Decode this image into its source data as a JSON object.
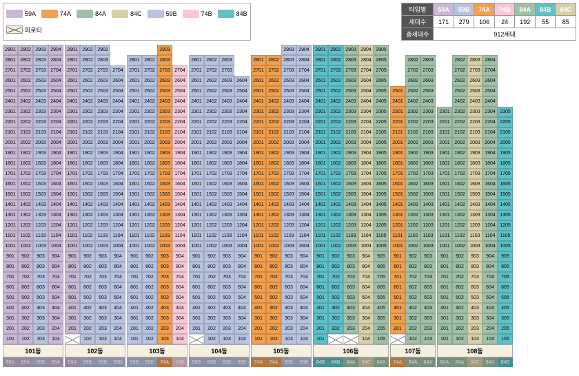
{
  "colors": {
    "59A": "#c9b8d4",
    "59B": "#b8c3e0",
    "74A": "#f0a050",
    "74B": "#f5c8d8",
    "84A": "#a0c0a8",
    "84B": "#60c0c8",
    "84C": "#d8d0a8",
    "피로티": "#ffffff"
  },
  "legend": [
    "59A",
    "74A",
    "84A",
    "84C",
    "59B",
    "74B",
    "84B",
    "피로티"
  ],
  "stats": {
    "header": "타입별",
    "row1_label": "세대수",
    "row2_label": "총세대수",
    "types": [
      "59A",
      "59B",
      "74A",
      "74B",
      "84A",
      "84B",
      "84C"
    ],
    "counts": [
      171,
      279,
      106,
      24,
      192,
      55,
      85
    ],
    "total": "912세대"
  },
  "buildings": [
    {
      "name": "101동",
      "lines": [
        "59A",
        "59A",
        "59B",
        "59A"
      ],
      "floors": 29,
      "piloti_floor": null,
      "top_offsets": [
        0,
        0,
        0,
        0
      ]
    },
    {
      "name": "102동",
      "lines": [
        "59A",
        "59B",
        "59B",
        "59B"
      ],
      "floors": 29,
      "piloti_floor": 1,
      "piloti_cols": [
        0
      ],
      "floor1_cols": [
        1,
        2,
        3
      ],
      "top_offsets": [
        0,
        0,
        0,
        2
      ]
    },
    {
      "name": "103동",
      "lines": [
        "59B",
        "59B",
        "74A",
        "74B"
      ],
      "floors": 29,
      "piloti_floor": null,
      "top_offsets": [
        1,
        1,
        0,
        2
      ]
    },
    {
      "name": "104동",
      "lines": [
        "59B",
        "59B",
        "59B",
        "59B"
      ],
      "floors": 29,
      "piloti_floor": 1,
      "piloti_cols": [
        0
      ],
      "floor1_cols": [
        1,
        2,
        3
      ],
      "top_offsets": [
        1,
        1,
        1,
        3
      ]
    },
    {
      "name": "105동",
      "lines": [
        "74A",
        "74A",
        "59B",
        "59B"
      ],
      "floors": 29,
      "piloti_floor": null,
      "top_offsets": [
        1,
        1,
        0,
        0
      ]
    },
    {
      "name": "106동",
      "lines": [
        "84B",
        "84B",
        "84A",
        "84C",
        "84A"
      ],
      "floors": 29,
      "piloti_floor": 1,
      "piloti_cols": [
        1,
        2
      ],
      "floor1_cols": [
        0,
        3,
        4
      ],
      "top_offsets": [
        0,
        0,
        0,
        0,
        0
      ]
    },
    {
      "name": "107동",
      "lines": [
        "74A",
        "84A",
        "84A"
      ],
      "floors": 29,
      "piloti_floor": 1,
      "piloti_cols": [
        0
      ],
      "floor1_cols": [
        1,
        2
      ],
      "top_offsets": [
        4,
        1,
        1
      ]
    },
    {
      "name": "108동",
      "lines": [
        "84A",
        "84A",
        "84C",
        "84A",
        "84B"
      ],
      "floors": 29,
      "piloti_floor": null,
      "top_offsets": [
        6,
        1,
        1,
        1,
        6
      ]
    }
  ]
}
